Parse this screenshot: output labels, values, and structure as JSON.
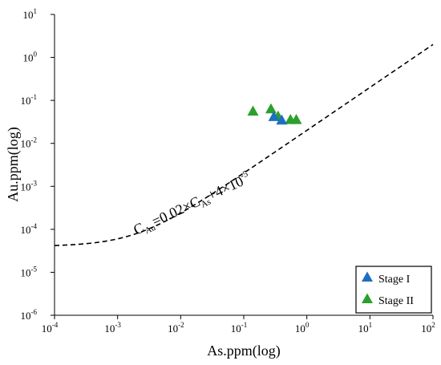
{
  "chart_data": {
    "type": "scatter",
    "xlabel": "As.ppm(log)",
    "ylabel": "Au.ppm(log)",
    "xscale": "log",
    "yscale": "log",
    "xlim": [
      0.0001,
      100
    ],
    "ylim": [
      1e-06,
      10
    ],
    "xticks": [
      {
        "base": "10",
        "exp": "-4",
        "value": 0.0001
      },
      {
        "base": "10",
        "exp": "-3",
        "value": 0.001
      },
      {
        "base": "10",
        "exp": "-2",
        "value": 0.01
      },
      {
        "base": "10",
        "exp": "-1",
        "value": 0.1
      },
      {
        "base": "10",
        "exp": "0",
        "value": 1
      },
      {
        "base": "10",
        "exp": "1",
        "value": 10
      },
      {
        "base": "10",
        "exp": "2",
        "value": 100
      }
    ],
    "yticks": [
      {
        "base": "10",
        "exp": "-6",
        "value": 1e-06
      },
      {
        "base": "10",
        "exp": "-5",
        "value": 1e-05
      },
      {
        "base": "10",
        "exp": "-4",
        "value": 0.0001
      },
      {
        "base": "10",
        "exp": "-3",
        "value": 0.001
      },
      {
        "base": "10",
        "exp": "-2",
        "value": 0.01
      },
      {
        "base": "10",
        "exp": "-1",
        "value": 0.1
      },
      {
        "base": "10",
        "exp": "0",
        "value": 1
      },
      {
        "base": "10",
        "exp": "1",
        "value": 10
      }
    ],
    "grid": false,
    "legend_position": "bottom-right",
    "series": [
      {
        "name": "Stage I",
        "color": "#1f6fbf",
        "marker": "triangle",
        "points": [
          {
            "x": 0.3,
            "y": 0.041
          },
          {
            "x": 0.4,
            "y": 0.034
          }
        ]
      },
      {
        "name": "Stage II",
        "color": "#2ca02c",
        "marker": "triangle",
        "points": [
          {
            "x": 0.14,
            "y": 0.055
          },
          {
            "x": 0.27,
            "y": 0.062
          },
          {
            "x": 0.35,
            "y": 0.042
          },
          {
            "x": 0.55,
            "y": 0.035
          },
          {
            "x": 0.68,
            "y": 0.035
          }
        ]
      }
    ],
    "reference_line": {
      "style": "dashed",
      "coef_a": 0.02,
      "coef_b": 4e-05,
      "label": {
        "p1": "C",
        "s1": "Au",
        "p2": "=0.02×C",
        "s2": "As",
        "p3": "+4×10",
        "s3": "-5"
      }
    }
  }
}
